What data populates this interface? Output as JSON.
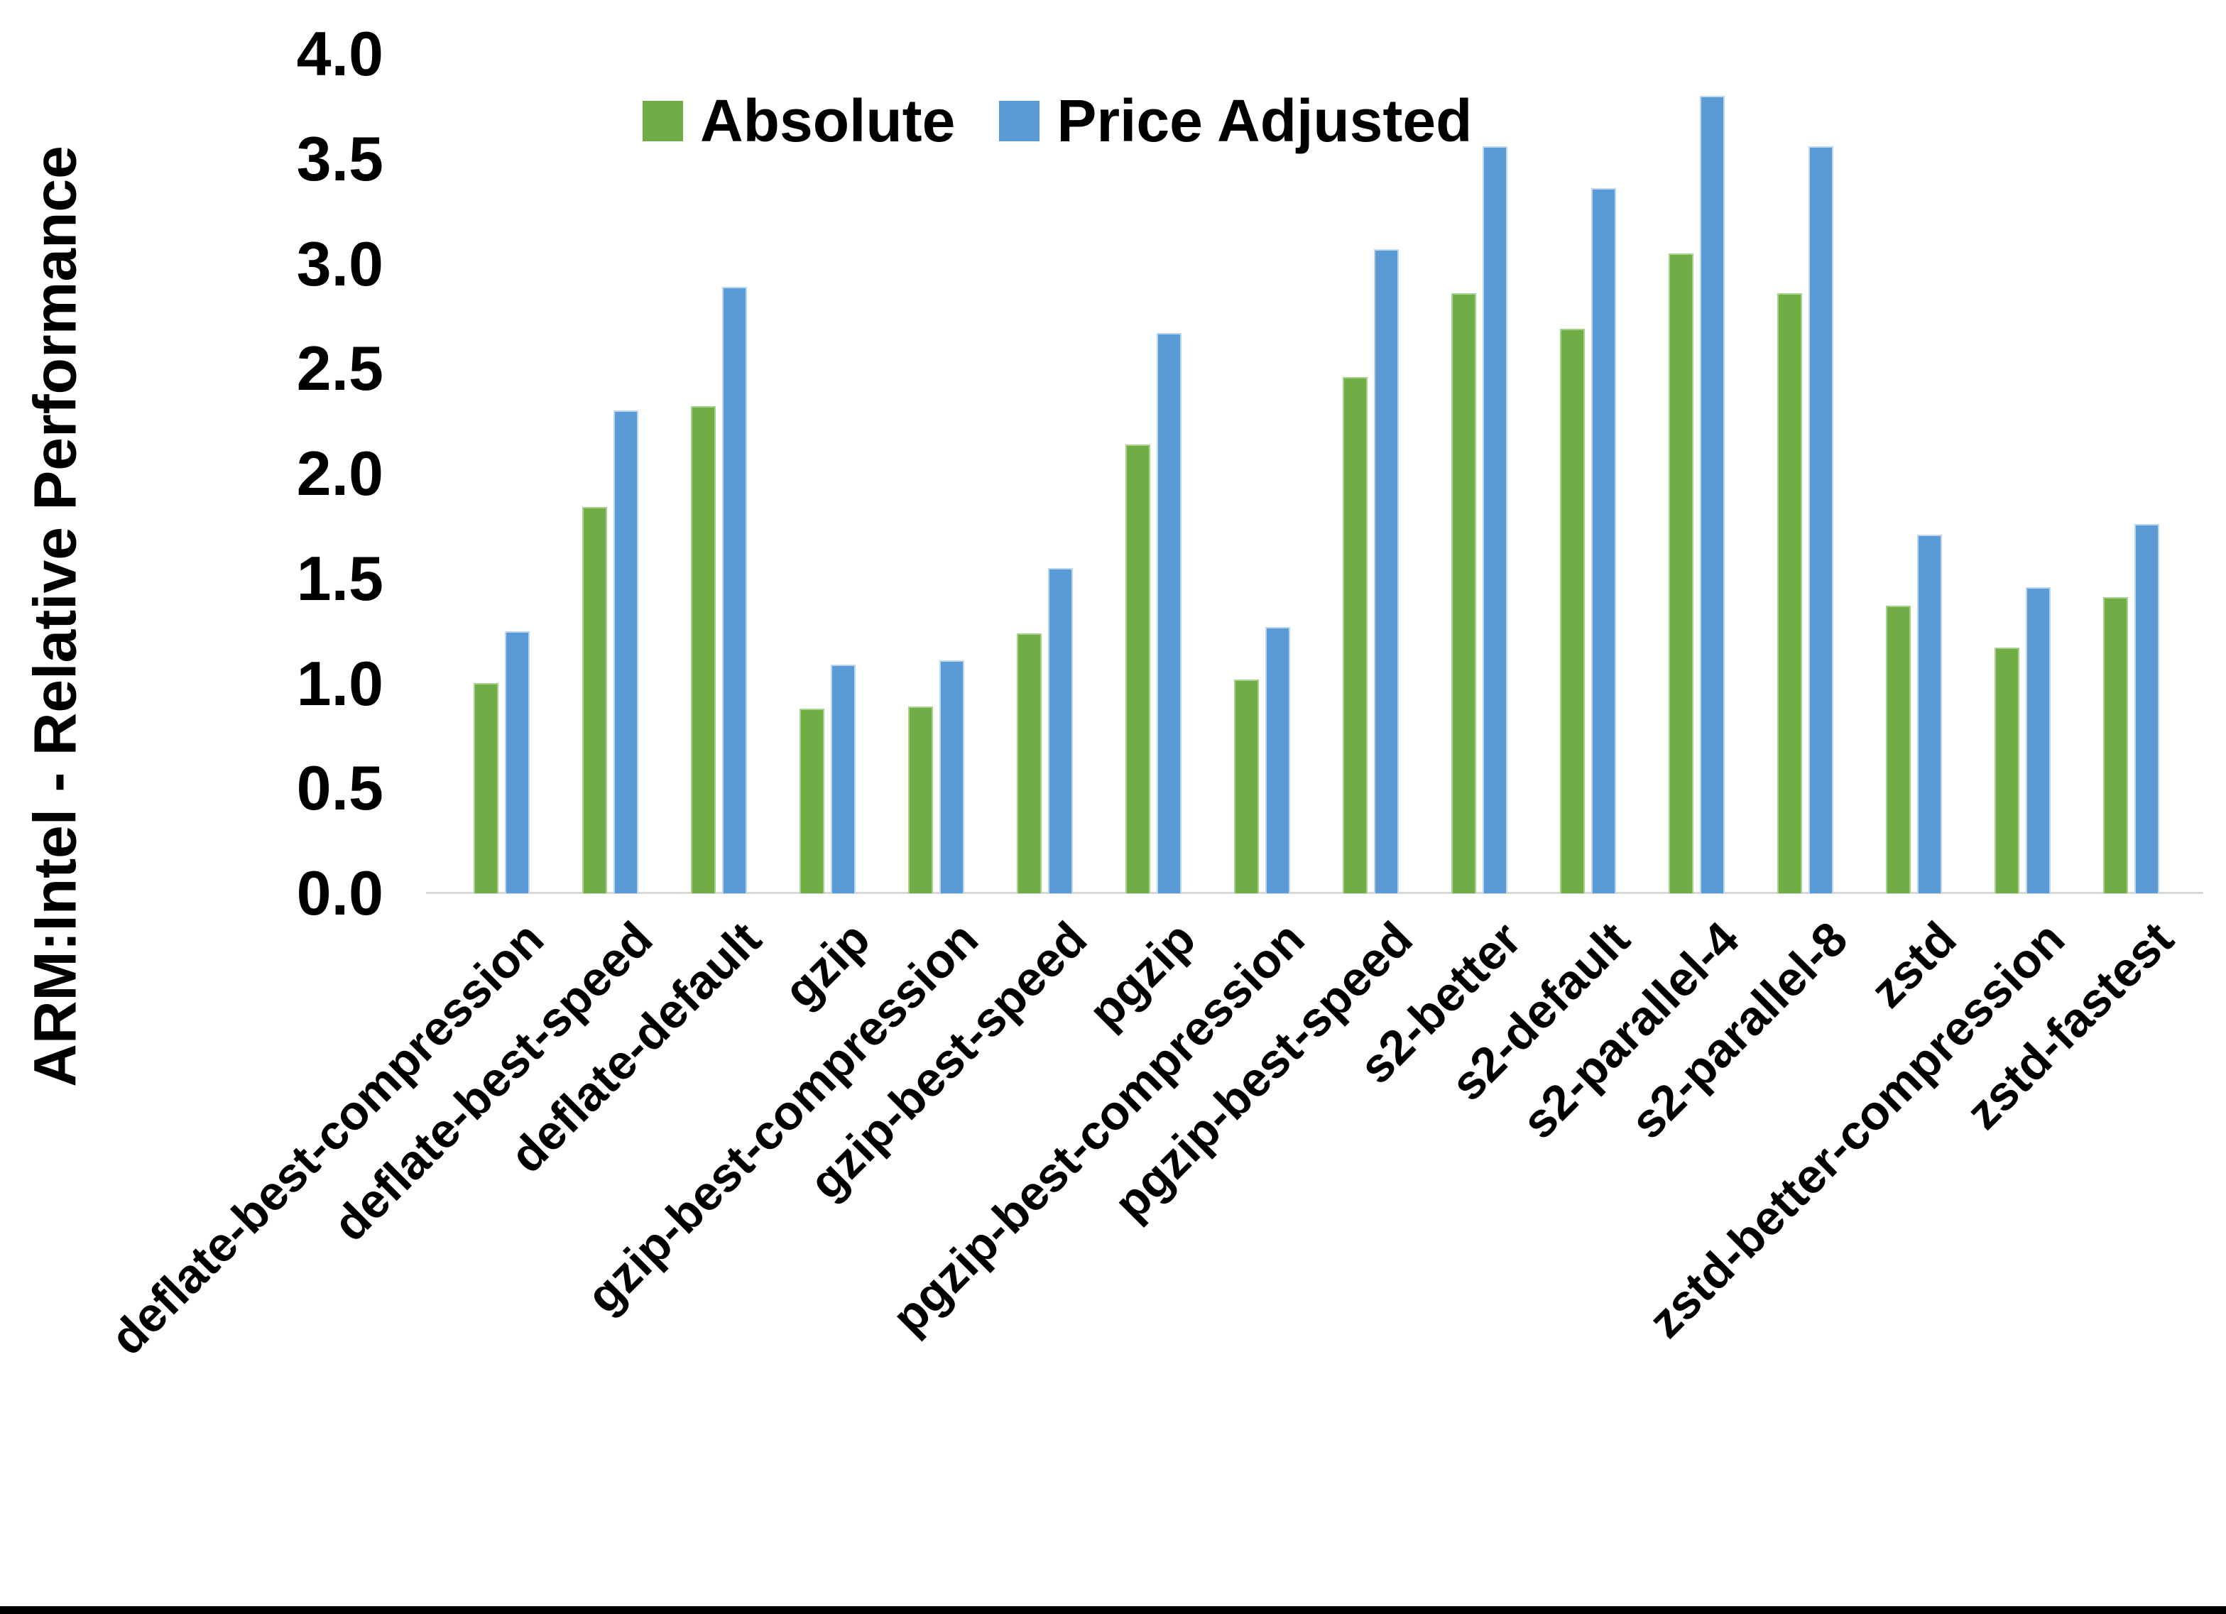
{
  "chart_data": {
    "type": "bar",
    "title": "",
    "xlabel": "",
    "ylabel": "ARM:Intel - Relative Performance",
    "ylim": [
      0.0,
      4.0
    ],
    "ytick_step": 0.5,
    "ytick_labels": [
      "0.0",
      "0.5",
      "1.0",
      "1.5",
      "2.0",
      "2.5",
      "3.0",
      "3.5",
      "4.0"
    ],
    "grid": false,
    "legend_position": "top-center",
    "categories": [
      "deflate-best-compression",
      "deflate-best-speed",
      "deflate-default",
      "gzip",
      "gzip-best-compression",
      "gzip-best-speed",
      "pgzip",
      "pgzip-best-compression",
      "pgzip-best-speed",
      "s2-better",
      "s2-default",
      "s2-parallel-4",
      "s2-parallel-8",
      "zstd",
      "zstd-better-compression",
      "zstd-fastest"
    ],
    "series": [
      {
        "name": "Absolute",
        "color": "#70ad47",
        "edge_color": "#a9d18e",
        "values": [
          1.0,
          1.84,
          2.32,
          0.88,
          0.89,
          1.24,
          2.14,
          1.02,
          2.46,
          2.86,
          2.69,
          3.05,
          2.86,
          1.37,
          1.17,
          1.41
        ]
      },
      {
        "name": "Price Adjusted",
        "color": "#5b9bd5",
        "edge_color": "#bdd7ee",
        "values": [
          1.25,
          2.3,
          2.89,
          1.09,
          1.11,
          1.55,
          2.67,
          1.27,
          3.07,
          3.56,
          3.36,
          3.8,
          3.56,
          1.71,
          1.46,
          1.76
        ]
      }
    ]
  },
  "legend": {
    "items": [
      {
        "label": "Absolute",
        "color": "#70ad47"
      },
      {
        "label": "Price Adjusted",
        "color": "#5b9bd5"
      }
    ]
  },
  "colors": {
    "axis_line": "#d9d9d9",
    "text": "#000000",
    "bottom_border": "#000000"
  }
}
